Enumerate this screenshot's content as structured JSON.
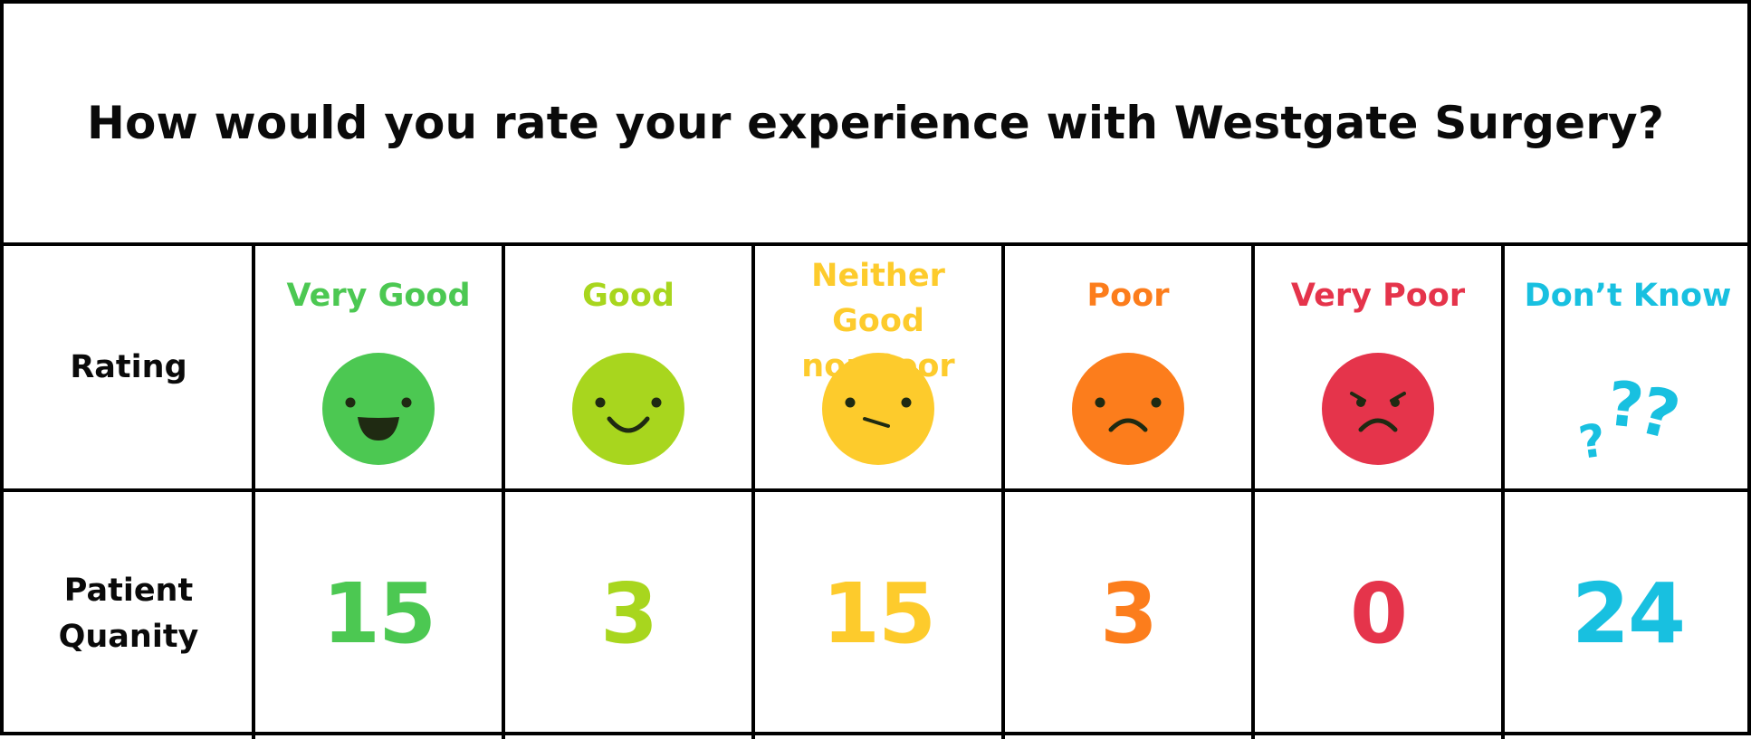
{
  "title": "How would you rate your experience with Westgate Surgery?",
  "row_labels": {
    "rating": "Rating",
    "quantity": [
      "Patient",
      "Quanity"
    ]
  },
  "colors": {
    "very_good": "#4cc852",
    "good": "#a8d61e",
    "neither": "#fdcb2c",
    "poor": "#fc7d1c",
    "very_poor": "#e5344b",
    "dont_know": "#18c0e0"
  },
  "chart_data": {
    "type": "table",
    "title": "How would you rate your experience with Westgate Surgery?",
    "row_headers": [
      "Rating",
      "Patient Quanity"
    ],
    "categories": [
      "Very Good",
      "Good",
      "Neither Good nor Poor",
      "Poor",
      "Very Poor",
      "Don’t Know"
    ],
    "category_lines": [
      [
        "Very Good"
      ],
      [
        "Good"
      ],
      [
        "Neither Good",
        "nor Poor"
      ],
      [
        "Poor"
      ],
      [
        "Very Poor"
      ],
      [
        "Don’t Know"
      ]
    ],
    "icons": [
      "very-happy-face-icon",
      "smiling-face-icon",
      "neutral-face-icon",
      "sad-face-icon",
      "angry-face-icon",
      "question-marks-icon"
    ],
    "values": [
      15,
      3,
      15,
      3,
      0,
      24
    ]
  }
}
